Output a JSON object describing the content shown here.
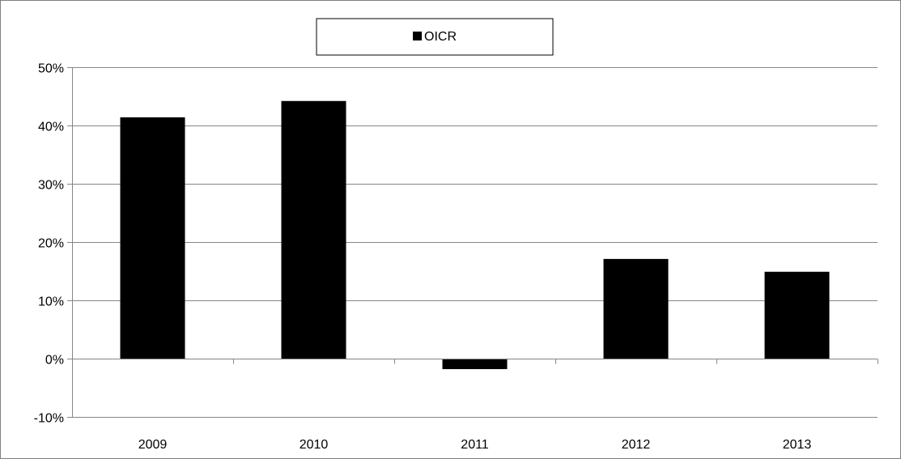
{
  "chart_data": {
    "type": "bar",
    "title": "",
    "xlabel": "",
    "ylabel": "",
    "categories": [
      "2009",
      "2010",
      "2011",
      "2012",
      "2013"
    ],
    "series": [
      {
        "name": "OICR",
        "values": [
          41.4,
          44.2,
          -1.8,
          17.1,
          14.9
        ],
        "color": "#000000"
      }
    ],
    "ylim": [
      -10,
      50
    ],
    "yticks": [
      -10,
      0,
      10,
      20,
      30,
      40,
      50
    ],
    "ytick_labels": [
      "-10%",
      "0%",
      "10%",
      "20%",
      "30%",
      "40%",
      "50%"
    ],
    "grid": true,
    "legend_position": "top-center",
    "colors": {
      "bar": "#000000",
      "grid": "#868686",
      "axis": "#868686",
      "frame": "#7f7f7f"
    }
  }
}
